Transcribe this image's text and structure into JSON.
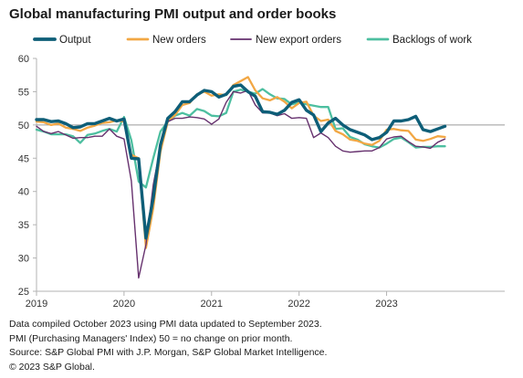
{
  "title": "Global manufacturing PMI output and order books",
  "footnotes": [
    "Data compiled October 2023 using PMI data updated to September 2023.",
    "PMI (Purchasing Managers' Index) 50 = no change on prior month.",
    "Source: S&P Global PMI with J.P. Morgan, S&P Global Market Intelligence.",
    "© 2023 S&P Global."
  ],
  "chart_data": {
    "type": "line",
    "title": "Global manufacturing PMI output and order books",
    "xlabel": "",
    "ylabel": "",
    "x_start": "2019-01",
    "x_end": "2023-09",
    "x_ticks": [
      "2019",
      "2020",
      "2021",
      "2022",
      "2023"
    ],
    "ylim": [
      25,
      60
    ],
    "y_ticks": [
      25,
      30,
      35,
      40,
      45,
      50,
      55,
      60
    ],
    "reference_line": 50,
    "grid": false,
    "legend_position": "top",
    "series": [
      {
        "name": "Output",
        "color": "#0e5e78",
        "width": 3.4,
        "values": [
          50.8,
          50.8,
          50.5,
          50.6,
          50.2,
          49.6,
          49.7,
          50.2,
          50.2,
          50.6,
          51.0,
          50.6,
          50.9,
          45.0,
          44.9,
          33.0,
          39.0,
          47.0,
          51.0,
          52.0,
          53.5,
          53.5,
          54.5,
          55.2,
          55.0,
          54.2,
          54.6,
          55.8,
          56.0,
          55.0,
          54.3,
          52.0,
          51.9,
          51.6,
          52.2,
          53.4,
          53.8,
          52.2,
          51.5,
          49.0,
          50.3,
          51.0,
          50.0,
          49.3,
          48.9,
          48.5,
          47.8,
          48.1,
          48.9,
          50.6,
          50.6,
          50.8,
          51.3,
          49.3,
          49.0,
          49.4,
          49.8
        ]
      },
      {
        "name": "New orders",
        "color": "#f2a744",
        "width": 2.3,
        "values": [
          50.5,
          50.4,
          50.0,
          50.2,
          49.6,
          49.4,
          49.1,
          49.6,
          49.9,
          50.3,
          50.4,
          50.7,
          50.5,
          45.5,
          45.0,
          31.5,
          37.5,
          46.0,
          50.5,
          51.5,
          53.0,
          53.3,
          54.6,
          55.0,
          54.4,
          54.6,
          54.5,
          56.0,
          56.6,
          57.2,
          55.2,
          54.0,
          53.7,
          54.2,
          53.5,
          52.5,
          53.3,
          53.5,
          51.4,
          50.6,
          50.8,
          49.1,
          48.6,
          47.8,
          47.6,
          47.2,
          47.0,
          47.6,
          49.3,
          49.4,
          49.2,
          49.1,
          47.8,
          47.6,
          47.9,
          48.3,
          48.2
        ]
      },
      {
        "name": "New export orders",
        "color": "#66316e",
        "width": 1.4,
        "values": [
          49.8,
          49.0,
          48.7,
          49.0,
          48.5,
          48.0,
          48.1,
          48.1,
          48.3,
          48.3,
          49.4,
          48.3,
          47.9,
          41.6,
          27.0,
          32.0,
          41.0,
          46.8,
          50.5,
          51.0,
          51.0,
          51.2,
          51.1,
          50.9,
          50.1,
          50.9,
          53.4,
          55.0,
          54.8,
          55.2,
          53.0,
          51.8,
          51.8,
          51.4,
          51.7,
          51.0,
          51.1,
          51.0,
          48.1,
          48.8,
          48.1,
          46.8,
          46.1,
          45.9,
          46.0,
          46.1,
          46.1,
          46.6,
          47.9,
          48.2,
          48.3,
          47.5,
          46.8,
          46.7,
          46.5,
          47.4,
          47.9
        ]
      },
      {
        "name": "Backlogs of work",
        "color": "#4dbfa0",
        "width": 2.3,
        "values": [
          49.3,
          49.0,
          48.6,
          48.6,
          48.6,
          48.3,
          47.3,
          48.5,
          48.7,
          49.1,
          49.4,
          49.0,
          51.2,
          47.7,
          41.5,
          40.6,
          45.0,
          49.0,
          50.5,
          51.4,
          51.8,
          51.4,
          52.4,
          52.1,
          51.4,
          51.3,
          51.8,
          55.0,
          55.3,
          55.0,
          54.7,
          55.4,
          54.6,
          54.0,
          53.9,
          53.1,
          53.4,
          53.1,
          52.9,
          52.7,
          52.7,
          49.4,
          49.5,
          48.2,
          47.8,
          47.1,
          46.8,
          46.6,
          47.2,
          47.9,
          48.1,
          47.4,
          46.6,
          46.7,
          46.7,
          46.8,
          46.8
        ]
      }
    ]
  }
}
